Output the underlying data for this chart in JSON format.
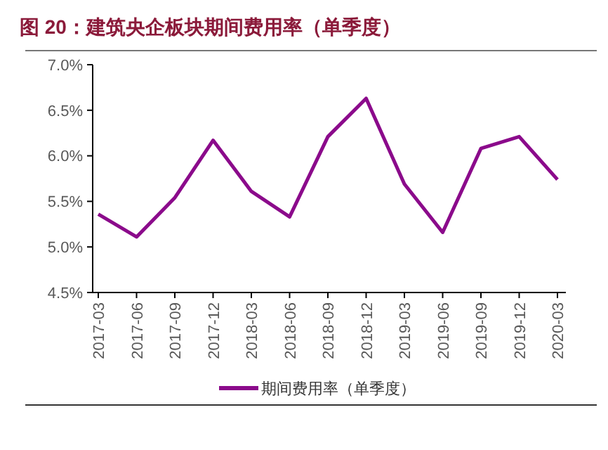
{
  "chart_data": {
    "type": "line",
    "title": "图 20：建筑央企板块期间费用率（单季度）",
    "categories": [
      "2017-03",
      "2017-06",
      "2017-09",
      "2017-12",
      "2018-03",
      "2018-06",
      "2018-09",
      "2018-12",
      "2019-03",
      "2019-06",
      "2019-09",
      "2019-12",
      "2020-03"
    ],
    "series": [
      {
        "name": "期间费用率（单季度）",
        "color": "#8b0a8b",
        "values": [
          5.36,
          5.11,
          5.54,
          6.17,
          5.61,
          5.33,
          6.21,
          6.63,
          5.69,
          5.16,
          6.08,
          6.21,
          5.74
        ]
      }
    ],
    "ylim": [
      4.5,
      7.0
    ],
    "yticks": [
      {
        "value": 4.5,
        "label": "4.5%"
      },
      {
        "value": 5.0,
        "label": "5.0%"
      },
      {
        "value": 5.5,
        "label": "5.5%"
      },
      {
        "value": 6.0,
        "label": "6.0%"
      },
      {
        "value": 6.5,
        "label": "6.5%"
      },
      {
        "value": 7.0,
        "label": "7.0%"
      }
    ],
    "grid": false,
    "legend": "bottom",
    "marker": "none",
    "line_style": "solid"
  }
}
